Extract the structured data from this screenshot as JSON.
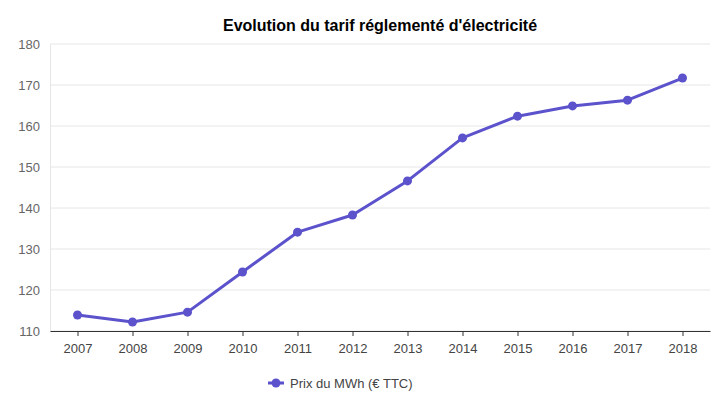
{
  "chart_data": {
    "type": "line",
    "title": "Evolution du tarif réglementé d'électricité",
    "categories": [
      "2007",
      "2008",
      "2009",
      "2010",
      "2011",
      "2012",
      "2013",
      "2014",
      "2015",
      "2016",
      "2017",
      "2018"
    ],
    "series": [
      {
        "name": "Prix du MWh (€ TTC)",
        "color": "#5b52cc",
        "values": [
          113.9,
          112.2,
          114.6,
          124.4,
          134.1,
          138.3,
          146.6,
          157.1,
          162.4,
          164.9,
          166.3,
          171.7
        ]
      }
    ],
    "ylim": [
      110,
      180
    ],
    "yticks": [
      110,
      120,
      130,
      140,
      150,
      160,
      170,
      180
    ],
    "grid": true,
    "legend": "bottom",
    "marker": "circle"
  }
}
